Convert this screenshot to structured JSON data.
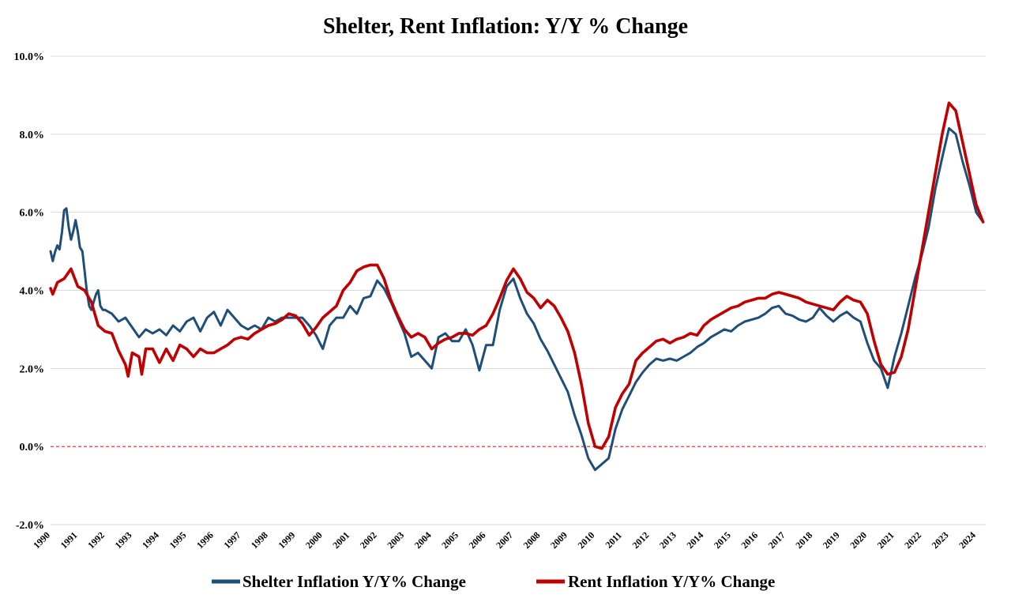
{
  "chart_data": {
    "type": "line",
    "title": "Shelter, Rent Inflation: Y/Y % Change",
    "xlabel": "",
    "ylabel": "",
    "ylim": [
      -2.0,
      10.0
    ],
    "xlim": [
      1990,
      2024.35
    ],
    "yticks": [
      {
        "value": -2,
        "label": "-2.0%"
      },
      {
        "value": 0,
        "label": "0.0%"
      },
      {
        "value": 2,
        "label": "2.0%"
      },
      {
        "value": 4,
        "label": "4.0%"
      },
      {
        "value": 6,
        "label": "6.0%"
      },
      {
        "value": 8,
        "label": "8.0%"
      },
      {
        "value": 10,
        "label": "10.0%"
      }
    ],
    "xticks": [
      1990,
      1991,
      1992,
      1993,
      1994,
      1995,
      1996,
      1997,
      1998,
      1999,
      2000,
      2001,
      2002,
      2003,
      2004,
      2005,
      2006,
      2007,
      2008,
      2009,
      2010,
      2011,
      2012,
      2013,
      2014,
      2015,
      2016,
      2017,
      2018,
      2019,
      2020,
      2021,
      2022,
      2023,
      2024
    ],
    "grid": true,
    "zero_line": {
      "value": 0,
      "style": "dashed",
      "color": "#e02020"
    },
    "legend_position": "bottom",
    "series": [
      {
        "name": "Shelter Inflation Y/Y% Change",
        "color": "#1f4e79",
        "points": [
          [
            1990.0,
            5.0
          ],
          [
            1990.08,
            4.75
          ],
          [
            1990.17,
            5.0
          ],
          [
            1990.25,
            5.15
          ],
          [
            1990.33,
            5.05
          ],
          [
            1990.42,
            5.5
          ],
          [
            1990.5,
            6.05
          ],
          [
            1990.58,
            6.1
          ],
          [
            1990.67,
            5.6
          ],
          [
            1990.75,
            5.3
          ],
          [
            1990.83,
            5.5
          ],
          [
            1990.92,
            5.8
          ],
          [
            1991.0,
            5.5
          ],
          [
            1991.08,
            5.1
          ],
          [
            1991.17,
            5.0
          ],
          [
            1991.25,
            4.5
          ],
          [
            1991.33,
            4.0
          ],
          [
            1991.42,
            3.6
          ],
          [
            1991.5,
            3.5
          ],
          [
            1991.58,
            3.7
          ],
          [
            1991.67,
            3.9
          ],
          [
            1991.75,
            4.0
          ],
          [
            1991.83,
            3.6
          ],
          [
            1991.92,
            3.5
          ],
          [
            1992.0,
            3.5
          ],
          [
            1992.25,
            3.4
          ],
          [
            1992.5,
            3.2
          ],
          [
            1992.75,
            3.3
          ],
          [
            1993.0,
            3.05
          ],
          [
            1993.25,
            2.8
          ],
          [
            1993.5,
            3.0
          ],
          [
            1993.75,
            2.9
          ],
          [
            1994.0,
            3.0
          ],
          [
            1994.25,
            2.85
          ],
          [
            1994.5,
            3.1
          ],
          [
            1994.75,
            2.95
          ],
          [
            1995.0,
            3.2
          ],
          [
            1995.25,
            3.3
          ],
          [
            1995.5,
            2.95
          ],
          [
            1995.75,
            3.3
          ],
          [
            1996.0,
            3.45
          ],
          [
            1996.25,
            3.1
          ],
          [
            1996.5,
            3.5
          ],
          [
            1996.75,
            3.3
          ],
          [
            1997.0,
            3.1
          ],
          [
            1997.25,
            3.0
          ],
          [
            1997.5,
            3.1
          ],
          [
            1997.75,
            3.0
          ],
          [
            1998.0,
            3.3
          ],
          [
            1998.25,
            3.2
          ],
          [
            1998.5,
            3.3
          ],
          [
            1998.75,
            3.3
          ],
          [
            1999.0,
            3.3
          ],
          [
            1999.25,
            3.3
          ],
          [
            1999.5,
            3.1
          ],
          [
            1999.75,
            2.85
          ],
          [
            2000.0,
            2.5
          ],
          [
            2000.25,
            3.1
          ],
          [
            2000.5,
            3.3
          ],
          [
            2000.75,
            3.3
          ],
          [
            2001.0,
            3.6
          ],
          [
            2001.25,
            3.4
          ],
          [
            2001.5,
            3.8
          ],
          [
            2001.75,
            3.85
          ],
          [
            2002.0,
            4.25
          ],
          [
            2002.25,
            4.05
          ],
          [
            2002.5,
            3.7
          ],
          [
            2002.75,
            3.3
          ],
          [
            2003.0,
            2.9
          ],
          [
            2003.25,
            2.3
          ],
          [
            2003.5,
            2.4
          ],
          [
            2003.75,
            2.2
          ],
          [
            2004.0,
            2.0
          ],
          [
            2004.25,
            2.8
          ],
          [
            2004.5,
            2.9
          ],
          [
            2004.75,
            2.7
          ],
          [
            2005.0,
            2.7
          ],
          [
            2005.25,
            3.0
          ],
          [
            2005.5,
            2.6
          ],
          [
            2005.75,
            1.95
          ],
          [
            2006.0,
            2.6
          ],
          [
            2006.25,
            2.6
          ],
          [
            2006.5,
            3.5
          ],
          [
            2006.75,
            4.1
          ],
          [
            2007.0,
            4.3
          ],
          [
            2007.25,
            3.8
          ],
          [
            2007.5,
            3.4
          ],
          [
            2007.75,
            3.15
          ],
          [
            2008.0,
            2.75
          ],
          [
            2008.25,
            2.45
          ],
          [
            2008.5,
            2.1
          ],
          [
            2008.75,
            1.75
          ],
          [
            2009.0,
            1.4
          ],
          [
            2009.25,
            0.8
          ],
          [
            2009.5,
            0.3
          ],
          [
            2009.75,
            -0.3
          ],
          [
            2010.0,
            -0.6
          ],
          [
            2010.25,
            -0.45
          ],
          [
            2010.5,
            -0.3
          ],
          [
            2010.75,
            0.45
          ],
          [
            2011.0,
            0.95
          ],
          [
            2011.25,
            1.3
          ],
          [
            2011.5,
            1.65
          ],
          [
            2011.75,
            1.9
          ],
          [
            2012.0,
            2.1
          ],
          [
            2012.25,
            2.25
          ],
          [
            2012.5,
            2.2
          ],
          [
            2012.75,
            2.25
          ],
          [
            2013.0,
            2.2
          ],
          [
            2013.25,
            2.3
          ],
          [
            2013.5,
            2.4
          ],
          [
            2013.75,
            2.55
          ],
          [
            2014.0,
            2.65
          ],
          [
            2014.25,
            2.8
          ],
          [
            2014.5,
            2.9
          ],
          [
            2014.75,
            3.0
          ],
          [
            2015.0,
            2.95
          ],
          [
            2015.25,
            3.1
          ],
          [
            2015.5,
            3.2
          ],
          [
            2015.75,
            3.25
          ],
          [
            2016.0,
            3.3
          ],
          [
            2016.25,
            3.4
          ],
          [
            2016.5,
            3.55
          ],
          [
            2016.75,
            3.6
          ],
          [
            2017.0,
            3.4
          ],
          [
            2017.25,
            3.35
          ],
          [
            2017.5,
            3.25
          ],
          [
            2017.75,
            3.2
          ],
          [
            2018.0,
            3.3
          ],
          [
            2018.25,
            3.55
          ],
          [
            2018.5,
            3.35
          ],
          [
            2018.75,
            3.2
          ],
          [
            2019.0,
            3.35
          ],
          [
            2019.25,
            3.45
          ],
          [
            2019.5,
            3.3
          ],
          [
            2019.75,
            3.2
          ],
          [
            2020.0,
            2.65
          ],
          [
            2020.25,
            2.2
          ],
          [
            2020.5,
            2.0
          ],
          [
            2020.75,
            1.5
          ],
          [
            2021.0,
            2.3
          ],
          [
            2021.25,
            2.9
          ],
          [
            2021.5,
            3.6
          ],
          [
            2021.75,
            4.3
          ],
          [
            2022.0,
            4.9
          ],
          [
            2022.25,
            5.6
          ],
          [
            2022.5,
            6.6
          ],
          [
            2022.75,
            7.4
          ],
          [
            2023.0,
            8.15
          ],
          [
            2023.25,
            8.0
          ],
          [
            2023.5,
            7.3
          ],
          [
            2023.75,
            6.7
          ],
          [
            2024.0,
            6.0
          ],
          [
            2024.25,
            5.75
          ]
        ]
      },
      {
        "name": "Rent Inflation Y/Y% Change",
        "color": "#c00000",
        "points": [
          [
            1990.0,
            4.05
          ],
          [
            1990.08,
            3.9
          ],
          [
            1990.25,
            4.2
          ],
          [
            1990.5,
            4.3
          ],
          [
            1990.75,
            4.55
          ],
          [
            1991.0,
            4.1
          ],
          [
            1991.25,
            4.0
          ],
          [
            1991.5,
            3.7
          ],
          [
            1991.75,
            3.1
          ],
          [
            1992.0,
            2.95
          ],
          [
            1992.25,
            2.9
          ],
          [
            1992.5,
            2.45
          ],
          [
            1992.75,
            2.1
          ],
          [
            1992.85,
            1.8
          ],
          [
            1993.0,
            2.4
          ],
          [
            1993.25,
            2.3
          ],
          [
            1993.35,
            1.85
          ],
          [
            1993.5,
            2.5
          ],
          [
            1993.75,
            2.5
          ],
          [
            1994.0,
            2.15
          ],
          [
            1994.25,
            2.5
          ],
          [
            1994.5,
            2.2
          ],
          [
            1994.75,
            2.6
          ],
          [
            1995.0,
            2.5
          ],
          [
            1995.25,
            2.3
          ],
          [
            1995.5,
            2.5
          ],
          [
            1995.75,
            2.4
          ],
          [
            1996.0,
            2.4
          ],
          [
            1996.25,
            2.5
          ],
          [
            1996.5,
            2.6
          ],
          [
            1996.75,
            2.75
          ],
          [
            1997.0,
            2.8
          ],
          [
            1997.25,
            2.75
          ],
          [
            1997.5,
            2.9
          ],
          [
            1997.75,
            3.0
          ],
          [
            1998.0,
            3.1
          ],
          [
            1998.25,
            3.15
          ],
          [
            1998.5,
            3.25
          ],
          [
            1998.75,
            3.4
          ],
          [
            1999.0,
            3.35
          ],
          [
            1999.25,
            3.15
          ],
          [
            1999.5,
            2.85
          ],
          [
            1999.75,
            3.05
          ],
          [
            2000.0,
            3.3
          ],
          [
            2000.25,
            3.45
          ],
          [
            2000.5,
            3.6
          ],
          [
            2000.75,
            4.0
          ],
          [
            2001.0,
            4.2
          ],
          [
            2001.25,
            4.5
          ],
          [
            2001.5,
            4.6
          ],
          [
            2001.75,
            4.65
          ],
          [
            2002.0,
            4.65
          ],
          [
            2002.25,
            4.3
          ],
          [
            2002.5,
            3.75
          ],
          [
            2002.75,
            3.35
          ],
          [
            2003.0,
            3.0
          ],
          [
            2003.25,
            2.8
          ],
          [
            2003.5,
            2.9
          ],
          [
            2003.75,
            2.8
          ],
          [
            2004.0,
            2.5
          ],
          [
            2004.25,
            2.65
          ],
          [
            2004.5,
            2.75
          ],
          [
            2004.75,
            2.8
          ],
          [
            2005.0,
            2.9
          ],
          [
            2005.25,
            2.9
          ],
          [
            2005.5,
            2.85
          ],
          [
            2005.75,
            3.0
          ],
          [
            2006.0,
            3.1
          ],
          [
            2006.25,
            3.4
          ],
          [
            2006.5,
            3.8
          ],
          [
            2006.75,
            4.25
          ],
          [
            2007.0,
            4.55
          ],
          [
            2007.25,
            4.3
          ],
          [
            2007.5,
            3.95
          ],
          [
            2007.75,
            3.8
          ],
          [
            2008.0,
            3.55
          ],
          [
            2008.25,
            3.75
          ],
          [
            2008.5,
            3.6
          ],
          [
            2008.75,
            3.3
          ],
          [
            2009.0,
            2.95
          ],
          [
            2009.25,
            2.4
          ],
          [
            2009.5,
            1.6
          ],
          [
            2009.75,
            0.6
          ],
          [
            2010.0,
            0.0
          ],
          [
            2010.25,
            -0.05
          ],
          [
            2010.5,
            0.25
          ],
          [
            2010.75,
            1.0
          ],
          [
            2011.0,
            1.35
          ],
          [
            2011.25,
            1.6
          ],
          [
            2011.5,
            2.2
          ],
          [
            2011.75,
            2.4
          ],
          [
            2012.0,
            2.55
          ],
          [
            2012.25,
            2.7
          ],
          [
            2012.5,
            2.75
          ],
          [
            2012.75,
            2.65
          ],
          [
            2013.0,
            2.75
          ],
          [
            2013.25,
            2.8
          ],
          [
            2013.5,
            2.9
          ],
          [
            2013.75,
            2.85
          ],
          [
            2014.0,
            3.1
          ],
          [
            2014.25,
            3.25
          ],
          [
            2014.5,
            3.35
          ],
          [
            2014.75,
            3.45
          ],
          [
            2015.0,
            3.55
          ],
          [
            2015.25,
            3.6
          ],
          [
            2015.5,
            3.7
          ],
          [
            2015.75,
            3.75
          ],
          [
            2016.0,
            3.8
          ],
          [
            2016.25,
            3.8
          ],
          [
            2016.5,
            3.9
          ],
          [
            2016.75,
            3.95
          ],
          [
            2017.0,
            3.9
          ],
          [
            2017.25,
            3.85
          ],
          [
            2017.5,
            3.8
          ],
          [
            2017.75,
            3.7
          ],
          [
            2018.0,
            3.65
          ],
          [
            2018.25,
            3.6
          ],
          [
            2018.5,
            3.55
          ],
          [
            2018.75,
            3.5
          ],
          [
            2019.0,
            3.7
          ],
          [
            2019.25,
            3.85
          ],
          [
            2019.5,
            3.75
          ],
          [
            2019.75,
            3.7
          ],
          [
            2020.0,
            3.4
          ],
          [
            2020.25,
            2.7
          ],
          [
            2020.5,
            2.1
          ],
          [
            2020.75,
            1.85
          ],
          [
            2021.0,
            1.9
          ],
          [
            2021.25,
            2.3
          ],
          [
            2021.5,
            3.0
          ],
          [
            2021.75,
            4.0
          ],
          [
            2022.0,
            5.0
          ],
          [
            2022.25,
            6.0
          ],
          [
            2022.5,
            7.0
          ],
          [
            2022.75,
            8.0
          ],
          [
            2023.0,
            8.8
          ],
          [
            2023.25,
            8.6
          ],
          [
            2023.5,
            7.8
          ],
          [
            2023.75,
            7.0
          ],
          [
            2024.0,
            6.2
          ],
          [
            2024.25,
            5.75
          ]
        ]
      }
    ]
  }
}
